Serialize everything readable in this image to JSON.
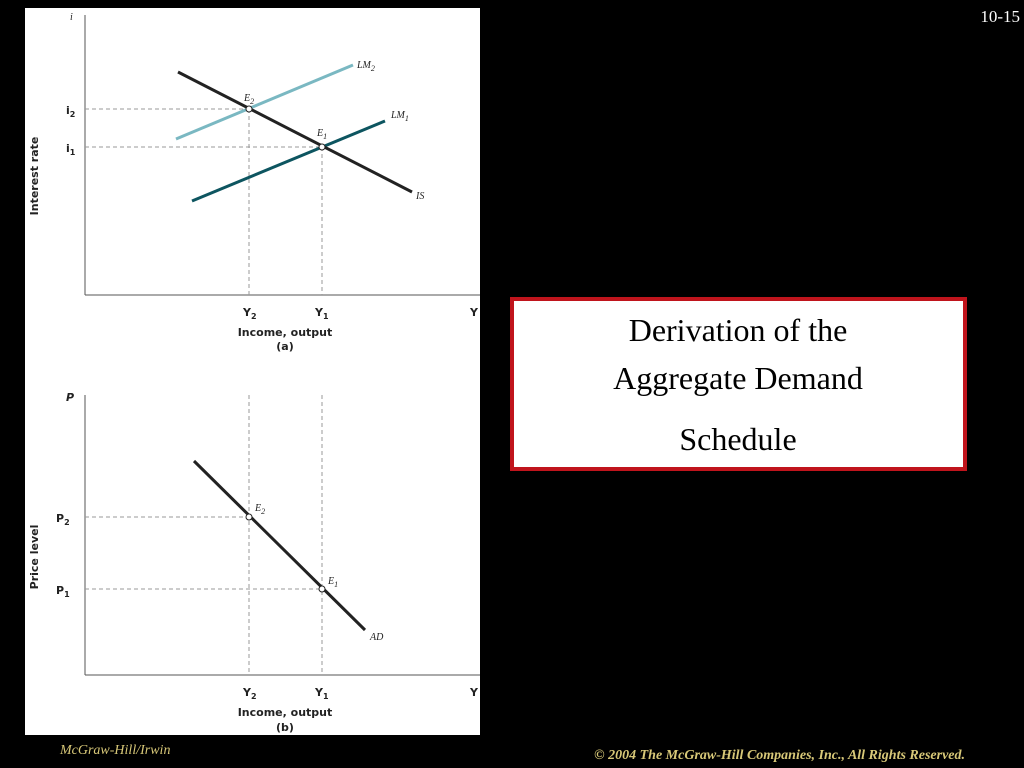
{
  "slide_number": "10-15",
  "title_box": {
    "lines": [
      "Derivation of the",
      "Aggregate Demand",
      "Schedule"
    ]
  },
  "panel_a": {
    "y_axis_symbol": "i",
    "y_axis_label": "Interest rate",
    "x_axis_symbol": "Y",
    "x_axis_label": "Income, output",
    "caption": "(a)",
    "y_ticks": [
      {
        "base": "i",
        "sub": "2"
      },
      {
        "base": "i",
        "sub": "1"
      }
    ],
    "x_ticks": [
      {
        "base": "Y",
        "sub": "2"
      },
      {
        "base": "Y",
        "sub": "1"
      }
    ],
    "curves": [
      {
        "base": "LM",
        "sub": "2"
      },
      {
        "base": "LM",
        "sub": "1"
      },
      {
        "base": "IS"
      }
    ],
    "points": [
      {
        "base": "E",
        "sub": "2"
      },
      {
        "base": "E",
        "sub": "1"
      }
    ]
  },
  "panel_b": {
    "y_axis_symbol": "P",
    "y_axis_label": "Price level",
    "x_axis_symbol": "Y",
    "x_axis_label": "Income, output",
    "caption": "(b)",
    "y_ticks": [
      {
        "base": "P",
        "sub": "2"
      },
      {
        "base": "P",
        "sub": "1"
      }
    ],
    "x_ticks": [
      {
        "base": "Y",
        "sub": "2"
      },
      {
        "base": "Y",
        "sub": "1"
      }
    ],
    "curves": [
      {
        "base": "AD"
      }
    ],
    "points": [
      {
        "base": "E",
        "sub": "2"
      },
      {
        "base": "E",
        "sub": "1"
      }
    ]
  },
  "footer": {
    "left": "McGraw-Hill/Irwin",
    "right": "© 2004 The McGraw-Hill Companies, Inc., All Rights Reserved."
  }
}
